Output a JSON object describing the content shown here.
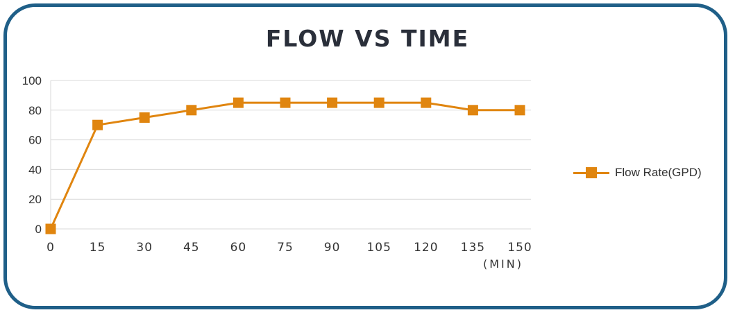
{
  "chart_data": {
    "type": "line",
    "title": "FLOW VS TIME",
    "x": [
      "0",
      "15",
      "30",
      "45",
      "60",
      "75",
      "90",
      "105",
      "120",
      "135",
      "150"
    ],
    "xunit": "(MIN)",
    "ylim": [
      0,
      100
    ],
    "yticks": [
      "0",
      "20",
      "40",
      "60",
      "80",
      "100"
    ],
    "grid": true,
    "legend": "right",
    "series": [
      {
        "name": "Flow Rate(GPD)",
        "values": [
          0,
          70,
          75,
          80,
          85,
          85,
          85,
          85,
          85,
          80,
          80
        ],
        "color": "#e0850f"
      }
    ]
  },
  "colors": {
    "frame": "#1f5f88",
    "grid": "#d9d9d9",
    "axis_text": "#333333"
  }
}
